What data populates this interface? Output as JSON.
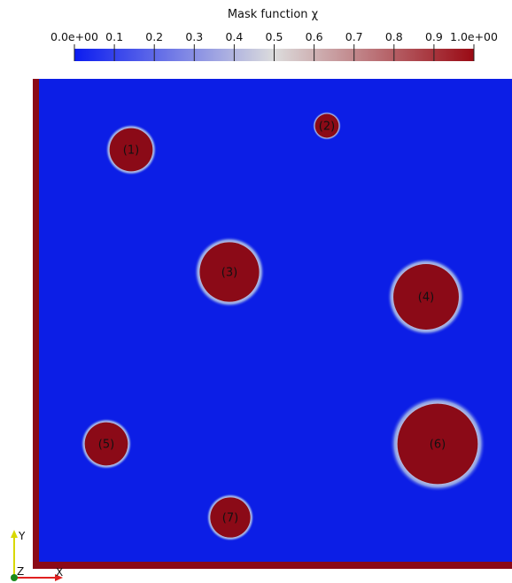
{
  "chart_data": {
    "type": "heatmap",
    "colorbar": {
      "title": "Mask function χ",
      "range": [
        0.0,
        1.0
      ],
      "ticks": [
        "0.0e+00",
        "0.1",
        "0.2",
        "0.3",
        "0.4",
        "0.5",
        "0.6",
        "0.7",
        "0.8",
        "0.9",
        "1.0e+00"
      ],
      "tick_values": [
        0.0,
        0.1,
        0.2,
        0.3,
        0.4,
        0.5,
        0.6,
        0.7,
        0.8,
        0.9,
        1.0
      ],
      "colormap": [
        "#0b1cf0",
        "#dcdcdc",
        "#9a0a14"
      ]
    },
    "field": {
      "background_value": 0.0,
      "inclusion_value": 1.0,
      "background_color": "#0c1ee6",
      "inclusion_color": "#8b0a17"
    },
    "inclusions": [
      {
        "label": "(1)",
        "value": 1.0
      },
      {
        "label": "(2)",
        "value": 1.0
      },
      {
        "label": "(3)",
        "value": 1.0
      },
      {
        "label": "(4)",
        "value": 1.0
      },
      {
        "label": "(5)",
        "value": 1.0
      },
      {
        "label": "(6)",
        "value": 1.0
      },
      {
        "label": "(7)",
        "value": 1.0
      }
    ],
    "axes_triad": {
      "x": "X",
      "y": "Y",
      "z": "Z"
    }
  }
}
